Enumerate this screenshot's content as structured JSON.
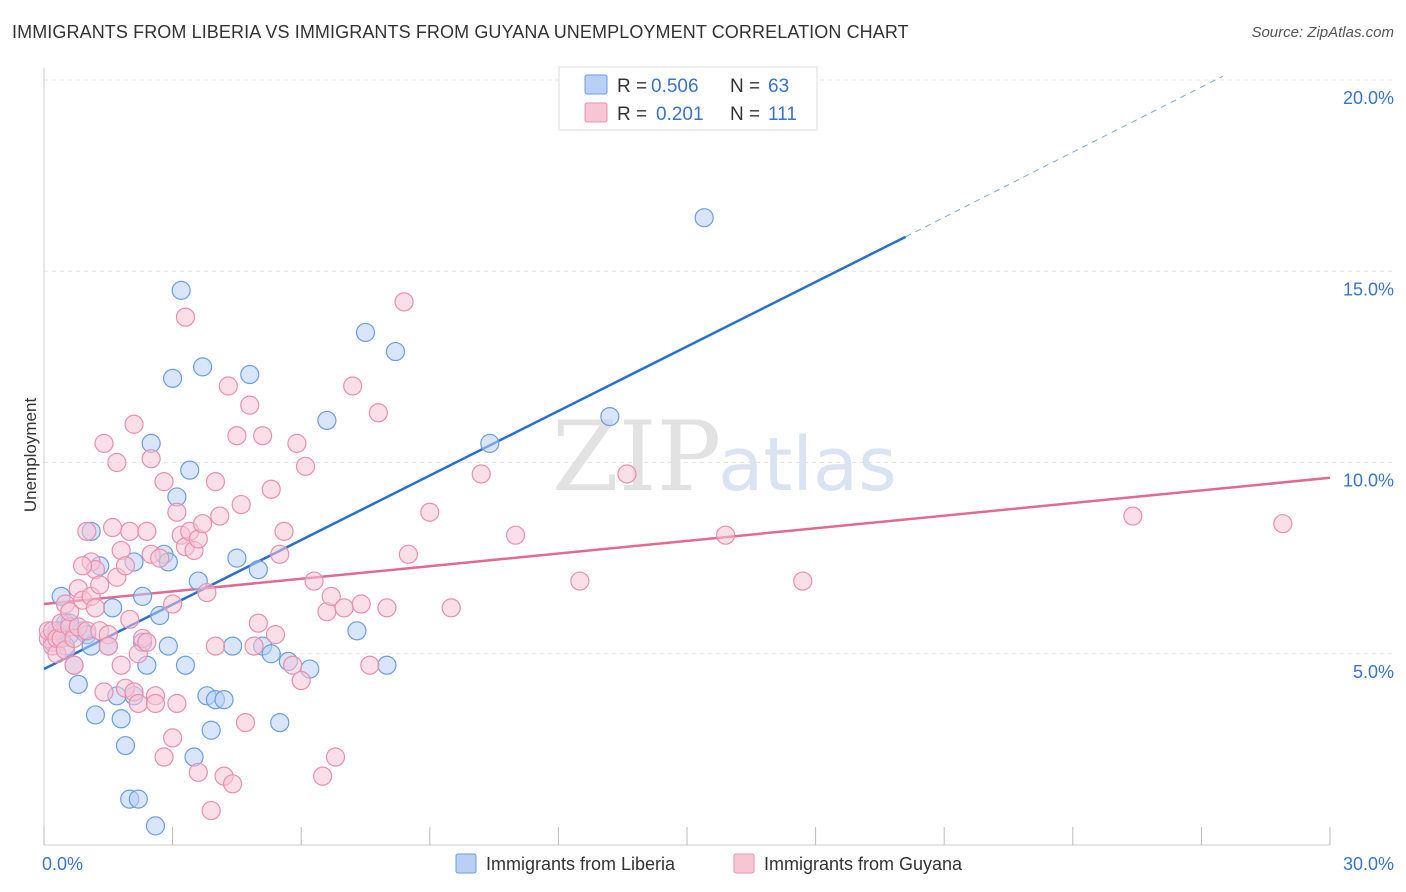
{
  "header": {
    "title": "IMMIGRANTS FROM LIBERIA VS IMMIGRANTS FROM GUYANA UNEMPLOYMENT CORRELATION CHART",
    "source": "Source: ZipAtlas.com"
  },
  "watermark": {
    "zip": "ZIP",
    "atlas": "atlas"
  },
  "legend": {
    "rows": [
      {
        "r_label": "R =",
        "r_value": "0.506",
        "n_label": "N =",
        "n_value": "63"
      },
      {
        "r_label": "R =",
        "r_value": "0.201",
        "n_label": "N =",
        "n_value": "111"
      }
    ]
  },
  "colors": {
    "liberia_fill": "#b8d0f5",
    "liberia_stroke": "#6b9ee0",
    "liberia_line": "#2a6fcb",
    "guyana_fill": "#f8c5d5",
    "guyana_stroke": "#ea8fae",
    "guyana_line": "#e06a93",
    "grid": "#e3e3e3",
    "tick_text": "#3a74c9"
  },
  "chart_data": {
    "type": "scatter",
    "title": "IMMIGRANTS FROM LIBERIA VS IMMIGRANTS FROM GUYANA UNEMPLOYMENT CORRELATION CHART",
    "xlabel": "",
    "ylabel": "Unemployment",
    "xlim": [
      0,
      30
    ],
    "ylim": [
      0,
      20
    ],
    "x_tick_labels": [
      "0.0%",
      "30.0%"
    ],
    "y_ticks": [
      5,
      10,
      15,
      20
    ],
    "y_tick_labels": [
      "5.0%",
      "10.0%",
      "15.0%",
      "20.0%"
    ],
    "grid": true,
    "legend_position": "top-center",
    "series": [
      {
        "name": "Immigrants from Liberia",
        "R": 0.506,
        "N": 63,
        "trend": {
          "x0": 0,
          "y0": 4.6,
          "x1": 20.1,
          "y1": 15.9,
          "dashed_to_x": 27.5,
          "dashed_to_y": 20.1
        },
        "points": [
          [
            0.2,
            5.3
          ],
          [
            0.3,
            5.5
          ],
          [
            0.4,
            6.5
          ],
          [
            0.5,
            5.8
          ],
          [
            0.6,
            5.5
          ],
          [
            0.7,
            4.7
          ],
          [
            0.8,
            4.2
          ],
          [
            0.9,
            5.6
          ],
          [
            1.0,
            5.5
          ],
          [
            1.1,
            5.2
          ],
          [
            1.1,
            8.2
          ],
          [
            1.2,
            3.4
          ],
          [
            1.3,
            7.3
          ],
          [
            1.5,
            5.2
          ],
          [
            1.6,
            6.2
          ],
          [
            1.7,
            3.9
          ],
          [
            1.8,
            3.3
          ],
          [
            1.9,
            2.6
          ],
          [
            2.0,
            1.2
          ],
          [
            2.1,
            3.9
          ],
          [
            2.1,
            7.4
          ],
          [
            2.2,
            1.2
          ],
          [
            2.3,
            6.5
          ],
          [
            2.3,
            5.3
          ],
          [
            2.4,
            4.7
          ],
          [
            2.5,
            10.5
          ],
          [
            2.6,
            0.5
          ],
          [
            2.7,
            6.0
          ],
          [
            2.8,
            7.6
          ],
          [
            2.9,
            5.2
          ],
          [
            2.9,
            7.4
          ],
          [
            3.0,
            12.2
          ],
          [
            3.1,
            9.1
          ],
          [
            3.2,
            14.5
          ],
          [
            3.4,
            9.8
          ],
          [
            3.5,
            2.3
          ],
          [
            3.3,
            4.7
          ],
          [
            3.6,
            6.9
          ],
          [
            3.7,
            12.5
          ],
          [
            3.8,
            3.9
          ],
          [
            4.0,
            3.8
          ],
          [
            3.9,
            3.0
          ],
          [
            4.2,
            3.8
          ],
          [
            4.5,
            7.5
          ],
          [
            4.8,
            12.3
          ],
          [
            4.4,
            5.2
          ],
          [
            5.1,
            5.2
          ],
          [
            5.3,
            5.0
          ],
          [
            5.0,
            7.2
          ],
          [
            5.5,
            3.2
          ],
          [
            5.7,
            4.8
          ],
          [
            6.2,
            4.6
          ],
          [
            6.6,
            11.1
          ],
          [
            7.3,
            5.6
          ],
          [
            7.5,
            13.4
          ],
          [
            8.0,
            4.7
          ],
          [
            8.2,
            12.9
          ],
          [
            10.4,
            10.5
          ],
          [
            13.2,
            11.2
          ],
          [
            15.4,
            16.4
          ],
          [
            0.5,
            5.2
          ],
          [
            0.3,
            5.6
          ],
          [
            0.6,
            5.8
          ]
        ]
      },
      {
        "name": "Immigrants from Guyana",
        "R": 0.201,
        "N": 111,
        "trend": {
          "x0": 0,
          "y0": 6.3,
          "x1": 30,
          "y1": 9.6
        },
        "points": [
          [
            0.1,
            5.4
          ],
          [
            0.1,
            5.6
          ],
          [
            0.2,
            5.2
          ],
          [
            0.2,
            5.6
          ],
          [
            0.3,
            5.0
          ],
          [
            0.3,
            5.4
          ],
          [
            0.4,
            5.4
          ],
          [
            0.4,
            5.8
          ],
          [
            0.5,
            5.1
          ],
          [
            0.5,
            6.3
          ],
          [
            0.6,
            5.7
          ],
          [
            0.6,
            6.1
          ],
          [
            0.7,
            5.4
          ],
          [
            0.7,
            4.7
          ],
          [
            0.8,
            6.7
          ],
          [
            0.8,
            5.7
          ],
          [
            0.9,
            6.4
          ],
          [
            1.0,
            8.2
          ],
          [
            1.0,
            5.6
          ],
          [
            1.1,
            7.4
          ],
          [
            1.1,
            6.5
          ],
          [
            1.2,
            6.2
          ],
          [
            1.2,
            7.2
          ],
          [
            1.3,
            6.8
          ],
          [
            1.3,
            5.6
          ],
          [
            1.4,
            4.0
          ],
          [
            1.4,
            10.5
          ],
          [
            1.5,
            5.5
          ],
          [
            1.5,
            5.2
          ],
          [
            1.6,
            8.3
          ],
          [
            1.7,
            10.0
          ],
          [
            1.7,
            7.0
          ],
          [
            1.8,
            7.7
          ],
          [
            1.8,
            4.7
          ],
          [
            1.9,
            7.3
          ],
          [
            1.9,
            4.1
          ],
          [
            2.0,
            8.2
          ],
          [
            2.0,
            5.9
          ],
          [
            2.1,
            11.0
          ],
          [
            2.1,
            4.0
          ],
          [
            2.2,
            5.0
          ],
          [
            2.2,
            3.7
          ],
          [
            2.3,
            5.4
          ],
          [
            2.4,
            8.2
          ],
          [
            2.4,
            5.3
          ],
          [
            2.5,
            7.6
          ],
          [
            2.5,
            10.1
          ],
          [
            2.6,
            3.9
          ],
          [
            2.6,
            3.7
          ],
          [
            2.7,
            7.5
          ],
          [
            2.8,
            2.3
          ],
          [
            2.8,
            9.5
          ],
          [
            3.0,
            6.3
          ],
          [
            3.0,
            2.8
          ],
          [
            3.1,
            8.7
          ],
          [
            3.1,
            3.7
          ],
          [
            3.2,
            8.1
          ],
          [
            3.3,
            13.8
          ],
          [
            3.3,
            7.8
          ],
          [
            3.4,
            8.2
          ],
          [
            3.5,
            7.7
          ],
          [
            3.6,
            8.0
          ],
          [
            3.6,
            1.9
          ],
          [
            3.7,
            8.4
          ],
          [
            3.8,
            6.6
          ],
          [
            3.9,
            0.9
          ],
          [
            4.0,
            5.2
          ],
          [
            4.0,
            9.5
          ],
          [
            4.1,
            8.6
          ],
          [
            4.2,
            1.8
          ],
          [
            4.3,
            12.0
          ],
          [
            4.4,
            1.6
          ],
          [
            4.5,
            10.7
          ],
          [
            4.6,
            8.9
          ],
          [
            4.7,
            3.2
          ],
          [
            4.8,
            11.5
          ],
          [
            4.9,
            5.2
          ],
          [
            5.0,
            5.8
          ],
          [
            5.1,
            10.7
          ],
          [
            5.3,
            9.3
          ],
          [
            5.4,
            5.5
          ],
          [
            5.5,
            7.6
          ],
          [
            5.6,
            8.2
          ],
          [
            5.8,
            4.7
          ],
          [
            5.9,
            10.5
          ],
          [
            6.0,
            4.3
          ],
          [
            6.1,
            9.9
          ],
          [
            6.3,
            6.9
          ],
          [
            6.5,
            1.8
          ],
          [
            6.6,
            6.1
          ],
          [
            6.7,
            6.5
          ],
          [
            6.8,
            2.3
          ],
          [
            7.0,
            6.2
          ],
          [
            7.2,
            12.0
          ],
          [
            7.4,
            6.3
          ],
          [
            7.6,
            4.7
          ],
          [
            7.8,
            11.3
          ],
          [
            8.0,
            6.2
          ],
          [
            8.4,
            14.2
          ],
          [
            8.5,
            7.6
          ],
          [
            9.0,
            8.7
          ],
          [
            9.5,
            6.2
          ],
          [
            10.2,
            9.7
          ],
          [
            11.0,
            8.1
          ],
          [
            12.5,
            6.9
          ],
          [
            13.6,
            9.7
          ],
          [
            15.9,
            8.1
          ],
          [
            17.7,
            6.9
          ],
          [
            25.4,
            8.6
          ],
          [
            28.9,
            8.4
          ],
          [
            0.9,
            7.3
          ]
        ]
      }
    ]
  },
  "bottom_legend": {
    "liberia": "Immigrants from Liberia",
    "guyana": "Immigrants from Guyana"
  }
}
